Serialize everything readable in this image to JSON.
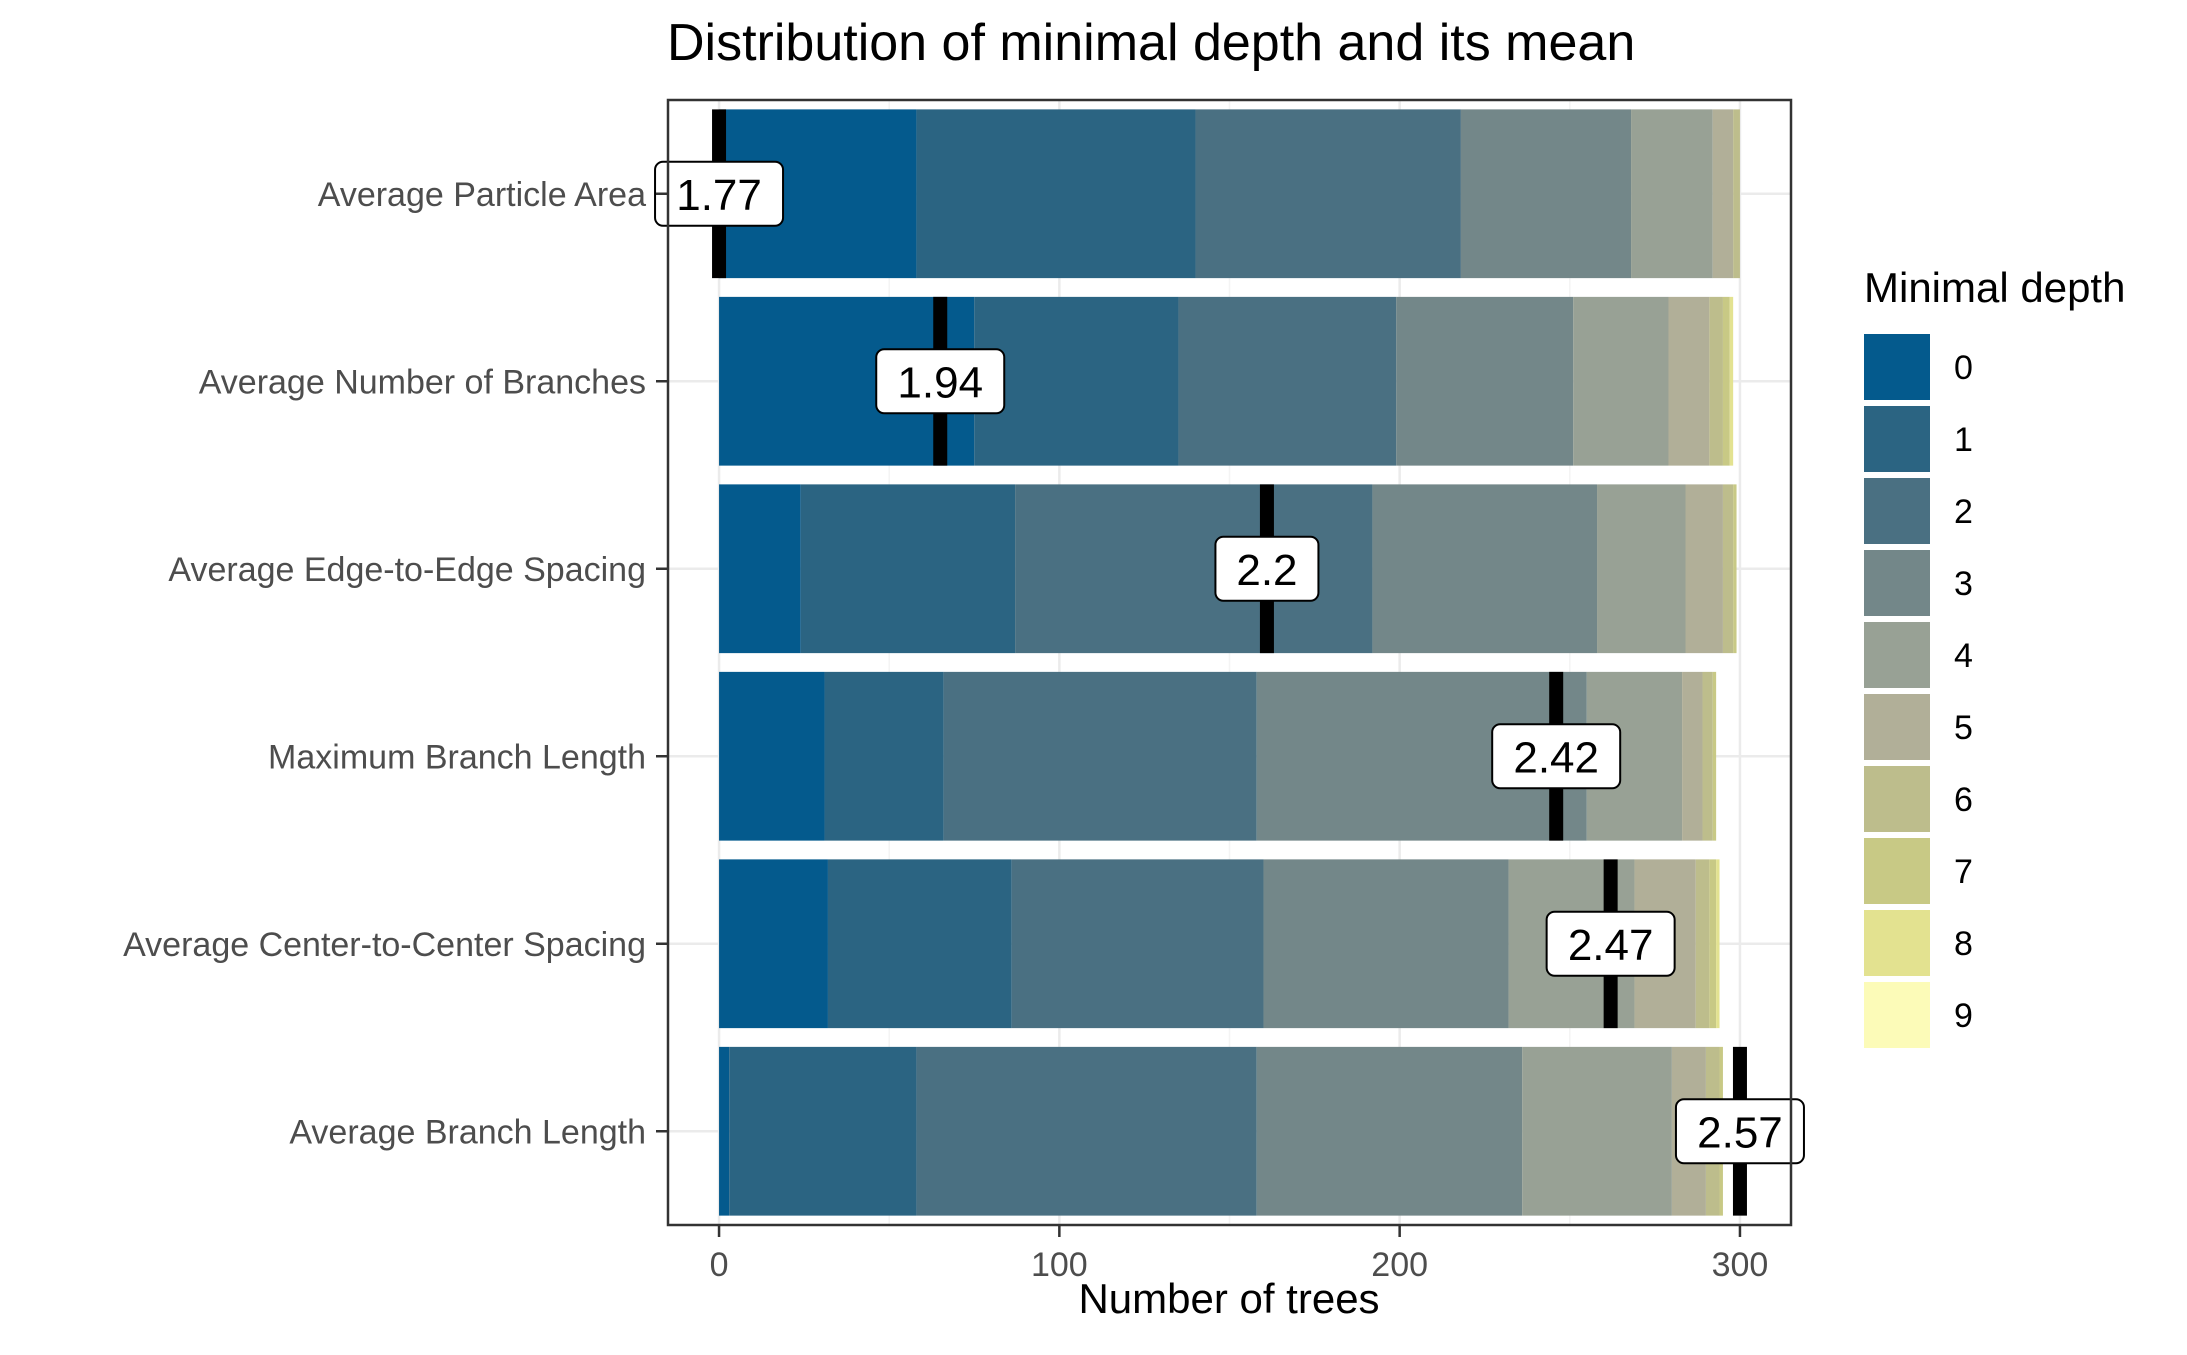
{
  "chart_data": {
    "type": "bar",
    "orientation": "horizontal",
    "stacked": true,
    "title": "Distribution of minimal depth and its mean",
    "xlabel": "Number of trees",
    "ylabel": "",
    "xlim": [
      -15,
      315
    ],
    "xticks": [
      0,
      100,
      200,
      300
    ],
    "xtick_labels": [
      "0",
      "100",
      "200",
      "300"
    ],
    "grid": true,
    "legend_position": "right",
    "legend": {
      "title": "Minimal depth",
      "labels": [
        "0",
        "1",
        "2",
        "3",
        "4",
        "5",
        "6",
        "7",
        "8",
        "9"
      ]
    },
    "colors": [
      "#045A8D",
      "#2B6482",
      "#4A7082",
      "#738789",
      "#98A195",
      "#B1AF98",
      "#BDBD8C",
      "#C8C985",
      "#E3E290",
      "#FCFBB8"
    ],
    "categories": [
      "Average Particle Area",
      "Average Number of Branches",
      "Average Edge-to-Edge Spacing",
      "Maximum Branch Length",
      "Average Center-to-Center Spacing",
      "Average Branch Length"
    ],
    "series": [
      {
        "name": "0",
        "values": [
          58,
          75,
          24,
          31,
          32,
          3
        ]
      },
      {
        "name": "1",
        "values": [
          82,
          60,
          63,
          35,
          54,
          55
        ]
      },
      {
        "name": "2",
        "values": [
          78,
          64,
          105,
          92,
          74,
          100
        ]
      },
      {
        "name": "3",
        "values": [
          50,
          52,
          66,
          97,
          72,
          78
        ]
      },
      {
        "name": "4",
        "values": [
          24,
          28,
          26,
          28,
          37,
          44
        ]
      },
      {
        "name": "5",
        "values": [
          6,
          12,
          11,
          6,
          18,
          10
        ]
      },
      {
        "name": "6",
        "values": [
          2,
          4,
          3,
          3,
          4,
          4
        ]
      },
      {
        "name": "7",
        "values": [
          0,
          2,
          1,
          1,
          2,
          1
        ]
      },
      {
        "name": "8",
        "values": [
          0,
          1,
          0,
          0,
          1,
          0
        ]
      },
      {
        "name": "9",
        "values": [
          0,
          0,
          0,
          0,
          0,
          0
        ]
      }
    ],
    "mean_markers": [
      {
        "category": "Average Particle Area",
        "x": 0,
        "label": "1.77"
      },
      {
        "category": "Average Number of Branches",
        "x": 65,
        "label": "1.94"
      },
      {
        "category": "Average Edge-to-Edge Spacing",
        "x": 161,
        "label": "2.2"
      },
      {
        "category": "Maximum Branch Length",
        "x": 246,
        "label": "2.42"
      },
      {
        "category": "Average Center-to-Center Spacing",
        "x": 262,
        "label": "2.47"
      },
      {
        "category": "Average Branch Length",
        "x": 300,
        "label": "2.57"
      }
    ]
  }
}
